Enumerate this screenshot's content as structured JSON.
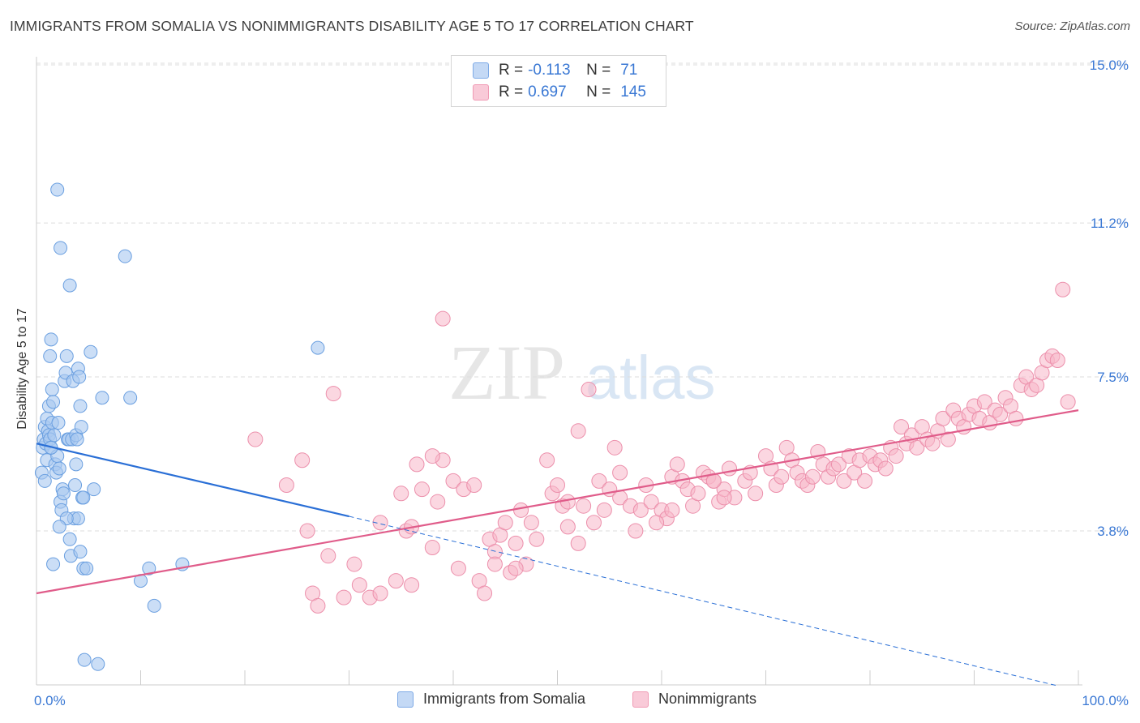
{
  "title": "IMMIGRANTS FROM SOMALIA VS NONIMMIGRANTS DISABILITY AGE 5 TO 17 CORRELATION CHART",
  "source": "Source: ZipAtlas.com",
  "watermark": {
    "zip": "ZIP",
    "atlas": "atlas"
  },
  "legend_stats": [
    {
      "r_label": "R =",
      "r_value": "-0.113",
      "n_label": "N =",
      "n_value": "71",
      "color": "#a8c8f0"
    },
    {
      "r_label": "R =",
      "r_value": "0.697",
      "n_label": "N =",
      "n_value": "145",
      "color": "#f7b6c9"
    }
  ],
  "colors": {
    "somalia_fill": "#a8c8f0",
    "somalia_stroke": "#6a9fe0",
    "somalia_line": "#2a6fd6",
    "nonimm_fill": "#f7b6c9",
    "nonimm_stroke": "#ec8fab",
    "nonimm_line": "#e05c8a",
    "tick_text": "#3a78d4",
    "grid": "#dddddd"
  },
  "chart_data": {
    "type": "scatter",
    "title": "IMMIGRANTS FROM SOMALIA VS NONIMMIGRANTS DISABILITY AGE 5 TO 17 CORRELATION CHART",
    "xlabel": "",
    "ylabel": "Disability Age 5 to 17",
    "xlim": [
      0,
      100
    ],
    "ylim": [
      0,
      15.5
    ],
    "x_tick_labels": [
      {
        "value": 0,
        "label": "0.0%"
      },
      {
        "value": 100,
        "label": "100.0%"
      }
    ],
    "y_ticks": [
      {
        "value": 3.8,
        "label": "3.8%"
      },
      {
        "value": 7.5,
        "label": "7.5%"
      },
      {
        "value": 11.2,
        "label": "11.2%"
      },
      {
        "value": 15.0,
        "label": "15.0%"
      }
    ],
    "x_minor_ticks": [
      0,
      10,
      20,
      30,
      40,
      50,
      60,
      70,
      80,
      90,
      100
    ],
    "grid": true,
    "legend_position": "top-center",
    "series": [
      {
        "name": "Immigrants from Somalia",
        "trend": {
          "x0": 0,
          "y0": 5.9,
          "x1": 30,
          "y1": 4.15,
          "dashed_to_x": 98,
          "dashed_to_y": 0.0
        },
        "points": [
          [
            0.5,
            5.2
          ],
          [
            0.6,
            5.8
          ],
          [
            0.7,
            6.0
          ],
          [
            0.8,
            6.3
          ],
          [
            0.9,
            5.9
          ],
          [
            1.0,
            6.5
          ],
          [
            1.1,
            6.2
          ],
          [
            1.2,
            6.1
          ],
          [
            1.3,
            6.0
          ],
          [
            1.4,
            5.8
          ],
          [
            1.5,
            6.4
          ],
          [
            1.0,
            5.5
          ],
          [
            1.2,
            6.8
          ],
          [
            1.3,
            8.0
          ],
          [
            1.4,
            8.4
          ],
          [
            1.5,
            7.2
          ],
          [
            1.6,
            6.9
          ],
          [
            1.7,
            6.1
          ],
          [
            1.8,
            5.4
          ],
          [
            1.9,
            5.2
          ],
          [
            2.0,
            5.6
          ],
          [
            2.1,
            6.4
          ],
          [
            2.2,
            5.3
          ],
          [
            2.3,
            4.5
          ],
          [
            2.4,
            4.3
          ],
          [
            2.5,
            4.8
          ],
          [
            2.6,
            4.7
          ],
          [
            2.7,
            7.4
          ],
          [
            2.8,
            7.6
          ],
          [
            2.9,
            8.0
          ],
          [
            3.0,
            6.0
          ],
          [
            3.1,
            6.0
          ],
          [
            3.2,
            3.6
          ],
          [
            3.3,
            3.2
          ],
          [
            3.4,
            6.0
          ],
          [
            3.5,
            7.4
          ],
          [
            3.6,
            4.1
          ],
          [
            3.7,
            4.9
          ],
          [
            3.8,
            6.1
          ],
          [
            3.9,
            6.0
          ],
          [
            4.0,
            7.7
          ],
          [
            4.1,
            7.5
          ],
          [
            4.2,
            6.8
          ],
          [
            4.3,
            6.3
          ],
          [
            4.4,
            4.6
          ],
          [
            4.5,
            4.6
          ],
          [
            4.0,
            4.1
          ],
          [
            3.8,
            5.4
          ],
          [
            2.9,
            4.1
          ],
          [
            1.6,
            3.0
          ],
          [
            2.2,
            3.9
          ],
          [
            4.2,
            3.3
          ],
          [
            4.5,
            2.9
          ],
          [
            4.8,
            2.9
          ],
          [
            5.2,
            8.1
          ],
          [
            5.5,
            4.8
          ],
          [
            6.3,
            7.0
          ],
          [
            2.0,
            12.0
          ],
          [
            2.3,
            10.6
          ],
          [
            3.2,
            9.7
          ],
          [
            8.5,
            10.4
          ],
          [
            9.0,
            7.0
          ],
          [
            10.0,
            2.6
          ],
          [
            10.8,
            2.9
          ],
          [
            11.3,
            2.0
          ],
          [
            14.0,
            3.0
          ],
          [
            27.0,
            8.2
          ],
          [
            4.6,
            0.7
          ],
          [
            5.9,
            0.6
          ],
          [
            1.4,
            5.8
          ],
          [
            0.8,
            5.0
          ]
        ]
      },
      {
        "name": "Nonimmigrants",
        "trend": {
          "x0": 0,
          "y0": 2.3,
          "x1": 100,
          "y1": 6.7
        },
        "points": [
          [
            21.0,
            6.0
          ],
          [
            24.0,
            4.9
          ],
          [
            25.5,
            5.5
          ],
          [
            26.0,
            3.8
          ],
          [
            26.5,
            2.3
          ],
          [
            27.0,
            2.0
          ],
          [
            28.0,
            3.2
          ],
          [
            28.5,
            7.1
          ],
          [
            29.5,
            2.2
          ],
          [
            30.5,
            3.0
          ],
          [
            31.0,
            2.5
          ],
          [
            32.0,
            2.2
          ],
          [
            33.0,
            4.0
          ],
          [
            34.5,
            2.6
          ],
          [
            35.0,
            4.7
          ],
          [
            35.5,
            3.8
          ],
          [
            36.0,
            2.5
          ],
          [
            36.5,
            5.4
          ],
          [
            37.0,
            4.8
          ],
          [
            38.0,
            3.4
          ],
          [
            38.5,
            4.5
          ],
          [
            39.0,
            5.5
          ],
          [
            40.0,
            5.0
          ],
          [
            40.5,
            2.9
          ],
          [
            41.0,
            4.8
          ],
          [
            42.0,
            4.9
          ],
          [
            42.5,
            2.6
          ],
          [
            43.0,
            2.3
          ],
          [
            43.5,
            3.6
          ],
          [
            44.0,
            3.3
          ],
          [
            44.5,
            3.7
          ],
          [
            45.0,
            4.0
          ],
          [
            45.5,
            2.8
          ],
          [
            46.0,
            3.5
          ],
          [
            46.5,
            4.3
          ],
          [
            47.0,
            3.0
          ],
          [
            47.5,
            4.0
          ],
          [
            48.0,
            3.6
          ],
          [
            49.0,
            5.5
          ],
          [
            49.5,
            4.7
          ],
          [
            50.0,
            4.9
          ],
          [
            50.5,
            4.4
          ],
          [
            51.0,
            3.9
          ],
          [
            52.0,
            3.5
          ],
          [
            52.5,
            4.4
          ],
          [
            53.0,
            7.2
          ],
          [
            53.5,
            4.0
          ],
          [
            54.0,
            5.0
          ],
          [
            54.5,
            4.3
          ],
          [
            55.0,
            4.8
          ],
          [
            55.5,
            5.8
          ],
          [
            56.0,
            4.6
          ],
          [
            57.0,
            4.4
          ],
          [
            57.5,
            3.8
          ],
          [
            58.0,
            4.3
          ],
          [
            58.5,
            4.9
          ],
          [
            59.0,
            4.5
          ],
          [
            60.0,
            4.3
          ],
          [
            60.5,
            4.1
          ],
          [
            61.0,
            5.1
          ],
          [
            61.5,
            5.4
          ],
          [
            62.0,
            5.0
          ],
          [
            62.5,
            4.8
          ],
          [
            63.0,
            4.4
          ],
          [
            63.5,
            4.7
          ],
          [
            64.0,
            5.2
          ],
          [
            64.5,
            5.1
          ],
          [
            65.0,
            5.0
          ],
          [
            65.5,
            4.5
          ],
          [
            66.0,
            4.8
          ],
          [
            66.5,
            5.3
          ],
          [
            67.0,
            4.6
          ],
          [
            68.0,
            5.0
          ],
          [
            68.5,
            5.2
          ],
          [
            69.0,
            4.7
          ],
          [
            70.0,
            5.6
          ],
          [
            70.5,
            5.3
          ],
          [
            71.0,
            4.9
          ],
          [
            71.5,
            5.1
          ],
          [
            72.0,
            5.8
          ],
          [
            72.5,
            5.5
          ],
          [
            73.0,
            5.2
          ],
          [
            73.5,
            5.0
          ],
          [
            74.0,
            4.9
          ],
          [
            74.5,
            5.1
          ],
          [
            75.0,
            5.7
          ],
          [
            75.5,
            5.4
          ],
          [
            76.0,
            5.1
          ],
          [
            76.5,
            5.3
          ],
          [
            77.0,
            5.4
          ],
          [
            77.5,
            5.0
          ],
          [
            78.0,
            5.6
          ],
          [
            78.5,
            5.2
          ],
          [
            79.0,
            5.5
          ],
          [
            79.5,
            5.0
          ],
          [
            80.0,
            5.6
          ],
          [
            80.5,
            5.4
          ],
          [
            81.0,
            5.5
          ],
          [
            81.5,
            5.3
          ],
          [
            82.0,
            5.8
          ],
          [
            82.5,
            5.6
          ],
          [
            83.0,
            6.3
          ],
          [
            83.5,
            5.9
          ],
          [
            84.0,
            6.1
          ],
          [
            84.5,
            5.8
          ],
          [
            85.0,
            6.3
          ],
          [
            85.5,
            6.0
          ],
          [
            86.0,
            5.9
          ],
          [
            86.5,
            6.2
          ],
          [
            87.0,
            6.5
          ],
          [
            87.5,
            6.0
          ],
          [
            88.0,
            6.7
          ],
          [
            88.5,
            6.5
          ],
          [
            89.0,
            6.3
          ],
          [
            89.5,
            6.6
          ],
          [
            90.0,
            6.8
          ],
          [
            90.5,
            6.5
          ],
          [
            91.0,
            6.9
          ],
          [
            91.5,
            6.4
          ],
          [
            92.0,
            6.7
          ],
          [
            92.5,
            6.6
          ],
          [
            93.0,
            7.0
          ],
          [
            93.5,
            6.8
          ],
          [
            94.0,
            6.5
          ],
          [
            94.5,
            7.3
          ],
          [
            95.0,
            7.5
          ],
          [
            95.5,
            7.2
          ],
          [
            96.0,
            7.3
          ],
          [
            96.5,
            7.6
          ],
          [
            97.0,
            7.9
          ],
          [
            97.5,
            8.0
          ],
          [
            98.0,
            7.9
          ],
          [
            98.5,
            9.6
          ],
          [
            99.0,
            6.9
          ],
          [
            38.0,
            5.6
          ],
          [
            36.0,
            3.9
          ],
          [
            46.0,
            2.9
          ],
          [
            51.0,
            4.5
          ],
          [
            56.0,
            5.2
          ],
          [
            59.5,
            4.0
          ],
          [
            61.0,
            4.3
          ],
          [
            66.0,
            4.6
          ],
          [
            52.0,
            6.2
          ],
          [
            44.0,
            3.0
          ],
          [
            65.0,
            5.0
          ],
          [
            33.0,
            2.3
          ],
          [
            39.0,
            8.9
          ]
        ]
      }
    ]
  },
  "bottom_legend": [
    {
      "label": "Immigrants from Somalia"
    },
    {
      "label": "Nonimmigrants"
    }
  ]
}
